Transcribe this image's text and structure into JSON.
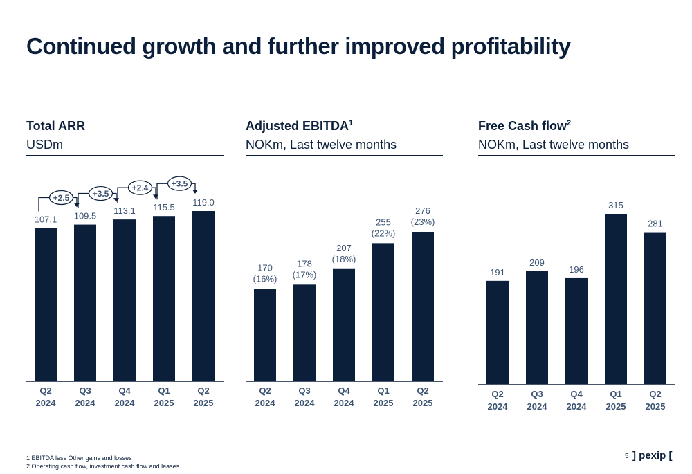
{
  "page": {
    "title": "Continued growth and further improved profitability",
    "page_number": "5",
    "logo_text": "] pexip [",
    "footnotes": [
      "1 EBITDA less Other gains and losses",
      "2 Operating cash flow, investment cash flow and leases"
    ]
  },
  "panels": [
    {
      "title": "Total ARR",
      "sup": "",
      "subtitle": "USDm"
    },
    {
      "title": "Adjusted EBITDA",
      "sup": "1",
      "subtitle": "NOKm, Last twelve months"
    },
    {
      "title": "Free Cash flow",
      "sup": "2",
      "subtitle": "NOKm, Last twelve months"
    }
  ],
  "colors": {
    "bar": "#0b1f3a",
    "text": "#0b1f3a",
    "value_label": "#3d5372"
  },
  "chart_data": [
    {
      "type": "bar",
      "title": "Total ARR",
      "ylabel": "USDm",
      "categories": [
        "Q2 2024",
        "Q3 2024",
        "Q4 2024",
        "Q1 2025",
        "Q2 2025"
      ],
      "category_lines": [
        [
          "Q2",
          "2024"
        ],
        [
          "Q3",
          "2024"
        ],
        [
          "Q4",
          "2024"
        ],
        [
          "Q1",
          "2025"
        ],
        [
          "Q2",
          "2025"
        ]
      ],
      "values": [
        107.1,
        109.5,
        113.1,
        115.5,
        119.0
      ],
      "value_labels": [
        "107.1",
        "109.5",
        "113.1",
        "115.5",
        "119.0"
      ],
      "increments": [
        "+2.5",
        "+3.5",
        "+2.4",
        "+3.5"
      ],
      "grid": false,
      "legend": "none"
    },
    {
      "type": "bar",
      "title": "Adjusted EBITDA",
      "ylabel": "NOKm, Last twelve months",
      "categories": [
        "Q2 2024",
        "Q3 2024",
        "Q4 2024",
        "Q1 2025",
        "Q2 2025"
      ],
      "category_lines": [
        [
          "Q2",
          "2024"
        ],
        [
          "Q3",
          "2024"
        ],
        [
          "Q4",
          "2024"
        ],
        [
          "Q1",
          "2025"
        ],
        [
          "Q2",
          "2025"
        ]
      ],
      "values": [
        170,
        178,
        207,
        255,
        276
      ],
      "value_labels": [
        "170",
        "178",
        "207",
        "255",
        "276"
      ],
      "margin_labels": [
        "(16%)",
        "(17%)",
        "(18%)",
        "(22%)",
        "(23%)"
      ],
      "grid": false,
      "legend": "none"
    },
    {
      "type": "bar",
      "title": "Free Cash flow",
      "ylabel": "NOKm, Last twelve months",
      "categories": [
        "Q2 2024",
        "Q3 2024",
        "Q4 2024",
        "Q1 2025",
        "Q2 2025"
      ],
      "category_lines": [
        [
          "Q2",
          "2024"
        ],
        [
          "Q3",
          "2024"
        ],
        [
          "Q4",
          "2024"
        ],
        [
          "Q1",
          "2025"
        ],
        [
          "Q2",
          "2025"
        ]
      ],
      "values": [
        191,
        209,
        196,
        315,
        281
      ],
      "value_labels": [
        "191",
        "209",
        "196",
        "315",
        "281"
      ],
      "grid": false,
      "legend": "none"
    }
  ]
}
